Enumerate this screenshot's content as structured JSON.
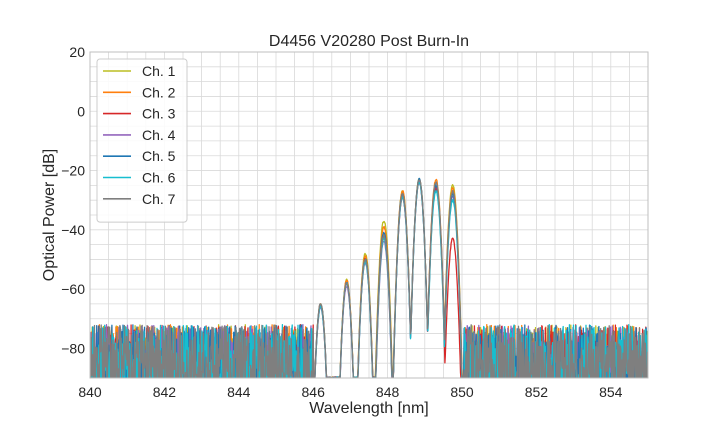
{
  "chart_data": {
    "type": "line",
    "title": "D4456 V20280 Post Burn-In",
    "xlabel": "Wavelength [nm]",
    "ylabel": "Optical Power [dB]",
    "xlim": [
      840,
      855
    ],
    "ylim": [
      -90,
      20
    ],
    "xticks": [
      840,
      842,
      844,
      846,
      848,
      850,
      852,
      854
    ],
    "yticks": [
      20,
      0,
      -20,
      -40,
      -60,
      -80
    ],
    "grid": true,
    "legend_position": "top-left",
    "noise_floor_db": [
      -88,
      -72
    ],
    "peak_wavelengths_nm": [
      846.8,
      847.8,
      848.8,
      849.5
    ],
    "series": [
      {
        "name": "Ch. 1",
        "color": "#bcbd22",
        "peaks_db": [
          {
            "x": 846.2,
            "y": -65
          },
          {
            "x": 846.9,
            "y": -57
          },
          {
            "x": 847.4,
            "y": -48
          },
          {
            "x": 847.9,
            "y": -37
          },
          {
            "x": 848.4,
            "y": -27
          },
          {
            "x": 848.85,
            "y": -23
          },
          {
            "x": 849.3,
            "y": -24
          },
          {
            "x": 849.75,
            "y": -25
          }
        ]
      },
      {
        "name": "Ch. 2",
        "color": "#ff7f0e",
        "peaks_db": [
          {
            "x": 846.2,
            "y": -65
          },
          {
            "x": 846.9,
            "y": -57
          },
          {
            "x": 847.4,
            "y": -49
          },
          {
            "x": 847.9,
            "y": -39
          },
          {
            "x": 848.4,
            "y": -27
          },
          {
            "x": 848.85,
            "y": -23
          },
          {
            "x": 849.3,
            "y": -23
          },
          {
            "x": 849.75,
            "y": -26
          }
        ]
      },
      {
        "name": "Ch. 3",
        "color": "#d62728",
        "peaks_db": [
          {
            "x": 846.2,
            "y": -66
          },
          {
            "x": 846.9,
            "y": -58
          },
          {
            "x": 847.4,
            "y": -50
          },
          {
            "x": 847.9,
            "y": -42
          },
          {
            "x": 848.4,
            "y": -29
          },
          {
            "x": 848.85,
            "y": -24
          },
          {
            "x": 849.3,
            "y": -26
          },
          {
            "x": 849.75,
            "y": -43
          }
        ]
      },
      {
        "name": "Ch. 4",
        "color": "#9467bd",
        "peaks_db": [
          {
            "x": 846.2,
            "y": -66
          },
          {
            "x": 846.9,
            "y": -59
          },
          {
            "x": 847.4,
            "y": -51
          },
          {
            "x": 847.9,
            "y": -44
          },
          {
            "x": 848.4,
            "y": -29
          },
          {
            "x": 848.85,
            "y": -24
          },
          {
            "x": 849.3,
            "y": -25
          },
          {
            "x": 849.75,
            "y": -29
          }
        ]
      },
      {
        "name": "Ch. 5",
        "color": "#1f77b4",
        "peaks_db": [
          {
            "x": 846.2,
            "y": -65
          },
          {
            "x": 846.9,
            "y": -58
          },
          {
            "x": 847.4,
            "y": -50
          },
          {
            "x": 847.9,
            "y": -41
          },
          {
            "x": 848.4,
            "y": -28
          },
          {
            "x": 848.85,
            "y": -23
          },
          {
            "x": 849.3,
            "y": -25
          },
          {
            "x": 849.75,
            "y": -28
          }
        ]
      },
      {
        "name": "Ch. 6",
        "color": "#17becf",
        "peaks_db": [
          {
            "x": 846.2,
            "y": -66
          },
          {
            "x": 846.9,
            "y": -58
          },
          {
            "x": 847.4,
            "y": -51
          },
          {
            "x": 847.9,
            "y": -43
          },
          {
            "x": 848.4,
            "y": -29
          },
          {
            "x": 848.85,
            "y": -24
          },
          {
            "x": 849.3,
            "y": -27
          },
          {
            "x": 849.75,
            "y": -30
          }
        ]
      },
      {
        "name": "Ch. 7",
        "color": "#7f7f7f",
        "peaks_db": [
          {
            "x": 846.2,
            "y": -65
          },
          {
            "x": 846.9,
            "y": -58
          },
          {
            "x": 847.4,
            "y": -50
          },
          {
            "x": 847.9,
            "y": -42
          },
          {
            "x": 848.4,
            "y": -28
          },
          {
            "x": 848.85,
            "y": -23
          },
          {
            "x": 849.3,
            "y": -24
          },
          {
            "x": 849.75,
            "y": -27
          }
        ]
      }
    ]
  }
}
